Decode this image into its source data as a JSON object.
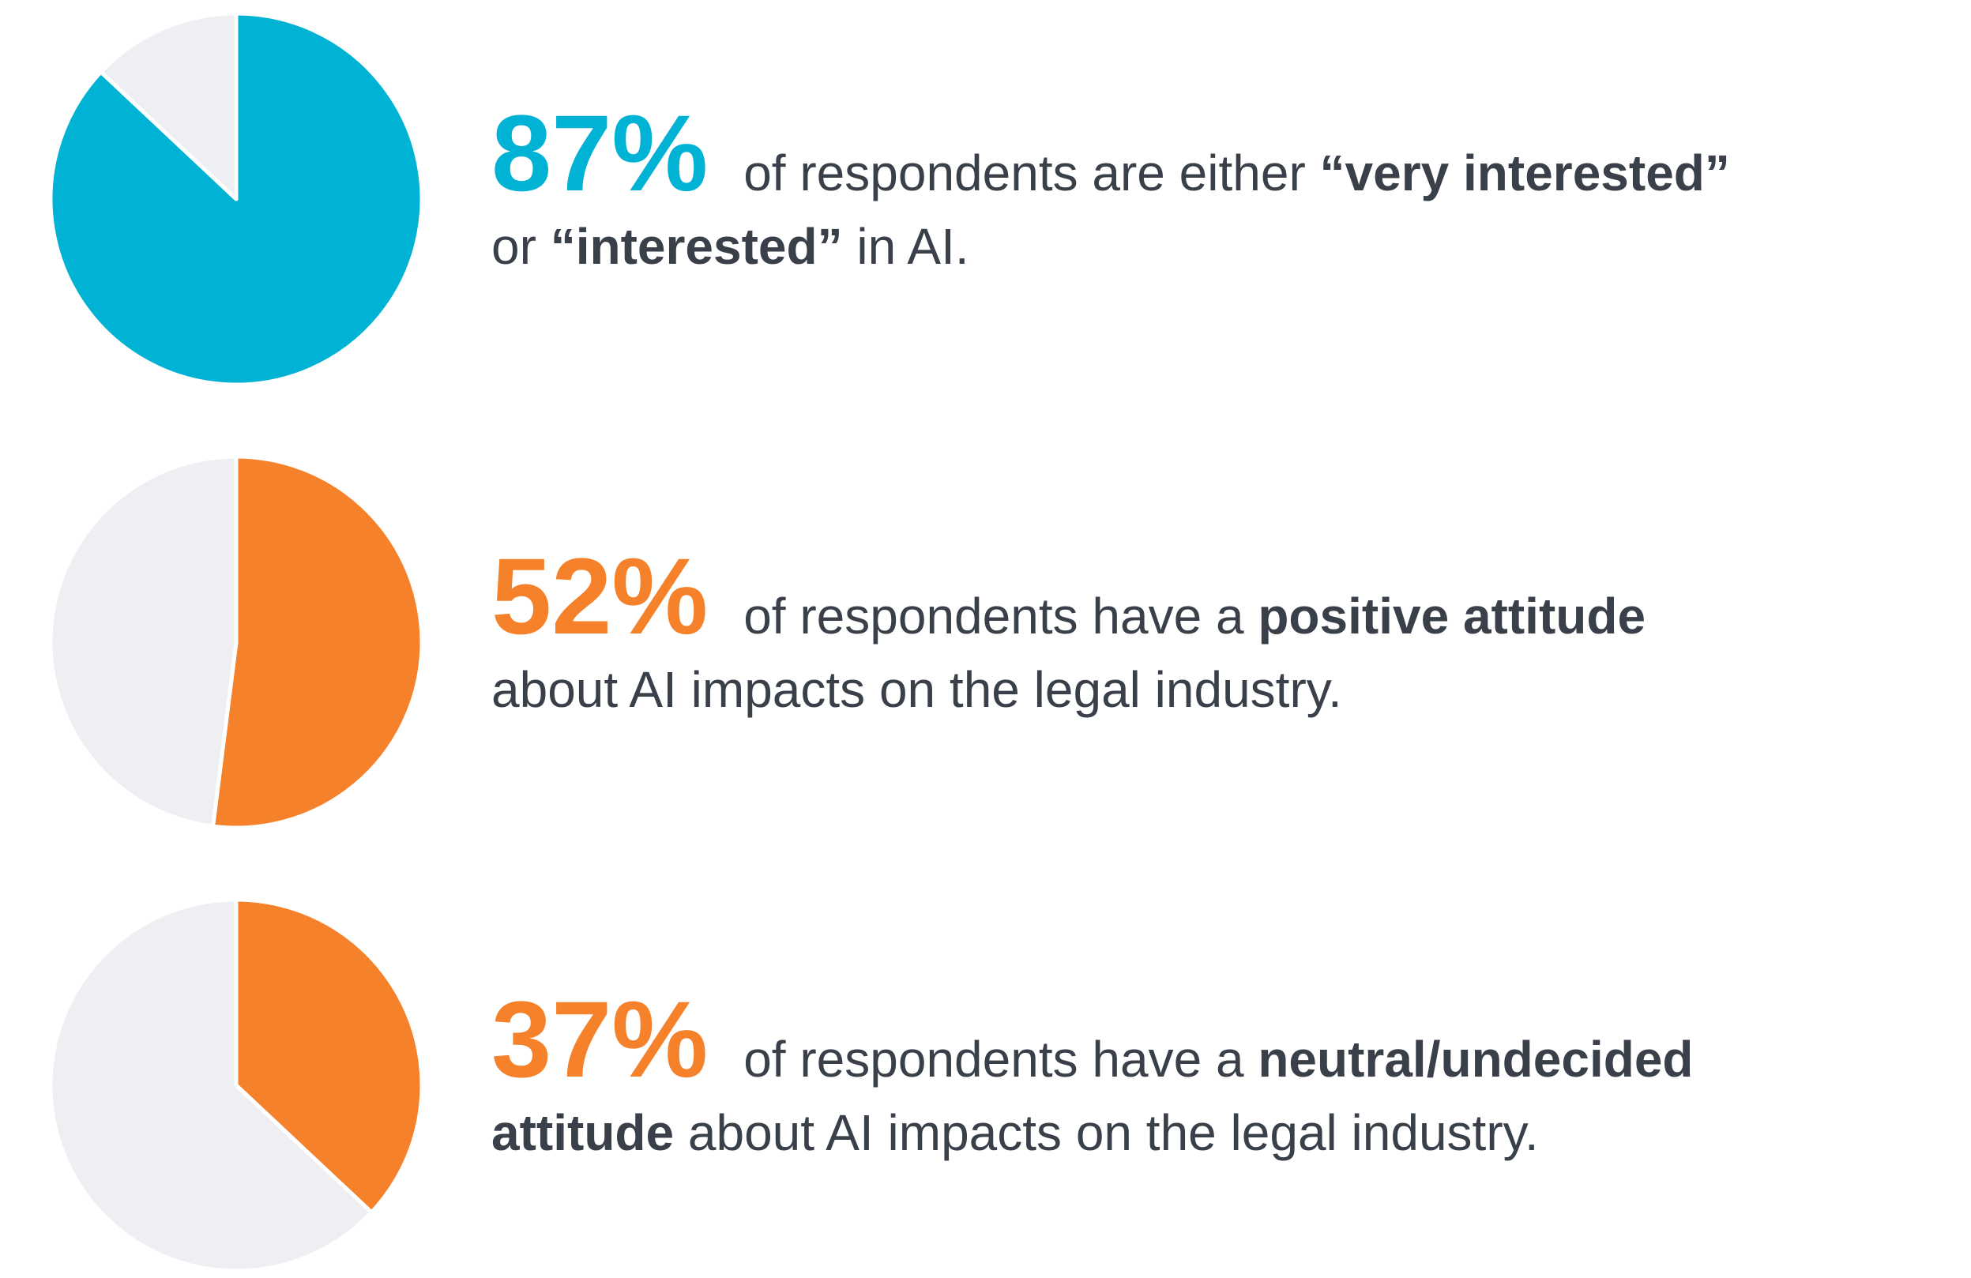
{
  "chart_data": [
    {
      "type": "pie",
      "values": [
        87,
        13
      ],
      "colors": [
        "#00b2d3",
        "#eeeff3"
      ],
      "value_labels": [
        "87%",
        null
      ],
      "text": [
        [
          {
            "text": "of respondents are either "
          },
          {
            "text": "“very interested”",
            "bold": true
          }
        ],
        [
          {
            "text": "or "
          },
          {
            "text": "“interested”",
            "bold": true
          },
          {
            "text": " in AI."
          }
        ]
      ]
    },
    {
      "type": "pie",
      "values": [
        52,
        48
      ],
      "colors": [
        "#f5822a",
        "#eeeff3"
      ],
      "value_labels": [
        "52%",
        null
      ],
      "text": [
        [
          {
            "text": "of respondents have a "
          },
          {
            "text": "positive attitude",
            "bold": true
          }
        ],
        [
          {
            "text": "about AI impacts on the legal industry."
          }
        ]
      ]
    },
    {
      "type": "pie",
      "values": [
        37,
        63
      ],
      "colors": [
        "#f5822a",
        "#eeeff3"
      ],
      "value_labels": [
        "37%",
        null
      ],
      "text": [
        [
          {
            "text": "of respondents have a "
          },
          {
            "text": "neutral/undecided",
            "bold": true
          }
        ],
        [
          {
            "text": "attitude",
            "bold": true
          },
          {
            "text": " about AI impacts on the legal industry."
          }
        ]
      ]
    }
  ]
}
